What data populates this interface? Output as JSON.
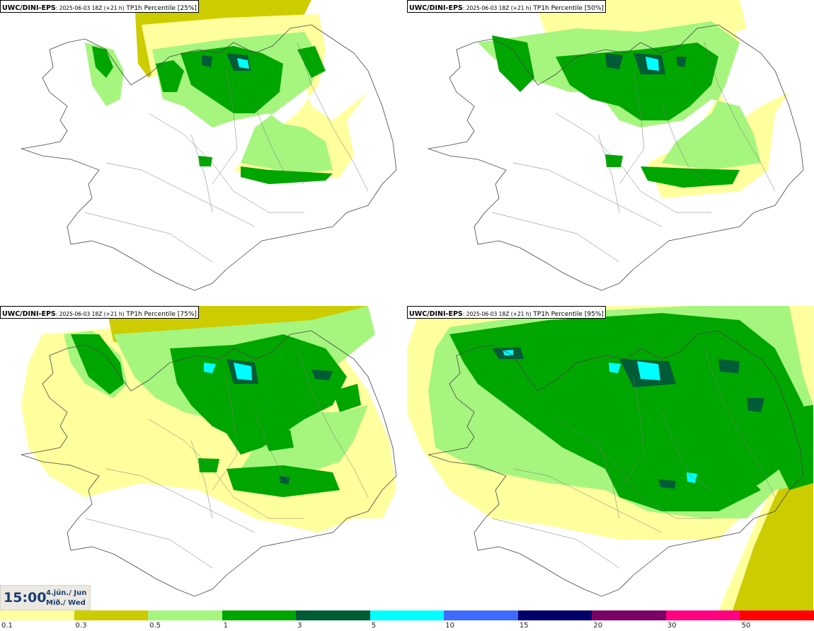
{
  "panels": [
    {
      "model": "UWC/DINI-EPS",
      "run": ": 2025-06-03 18Z (+21 h)",
      "field": " TP1h Percentile [25%]"
    },
    {
      "model": "UWC/DINI-EPS",
      "run": ": 2025-06-03 18Z (+21 h)",
      "field": " TP1h Percentile [50%]"
    },
    {
      "model": "UWC/DINI-EPS",
      "run": ": 2025-06-03 18Z (+21 h)",
      "field": " TP1h Percentile [75%]"
    },
    {
      "model": "UWC/DINI-EPS",
      "run": ": 2025-06-03 18Z (+21 h)",
      "field": " TP1h Percentile [95%]"
    }
  ],
  "valid_time": {
    "time": "15:00",
    "date": "4.jún./ Jun",
    "weekday": "Mið./ Wed"
  },
  "legend": {
    "colors": [
      "#ffff9e",
      "#cccc00",
      "#a6f57f",
      "#00a600",
      "#005c36",
      "#00ffff",
      "#3d6bff",
      "#00006b",
      "#7a0066",
      "#ff0080",
      "#ff0000"
    ],
    "labels": [
      "0.1",
      "0.3",
      "0.5",
      "1",
      "3",
      "5",
      "10",
      "15",
      "20",
      "30",
      "50"
    ]
  }
}
